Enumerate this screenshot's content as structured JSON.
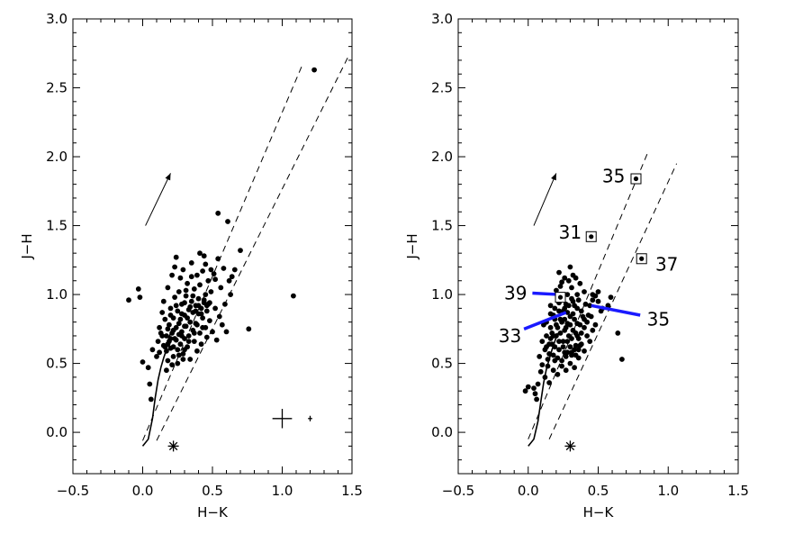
{
  "chart_data": [
    {
      "type": "scatter",
      "panel": "left",
      "xlabel": "H−K",
      "ylabel": "J−H",
      "xlim": [
        -0.5,
        1.5
      ],
      "ylim": [
        -0.3,
        3.0
      ],
      "x_ticks": [
        "−0.5",
        "0.0",
        "0.5",
        "1.0",
        "1.5"
      ],
      "y_ticks": [
        "0.0",
        "0.5",
        "1.0",
        "1.5",
        "2.0",
        "2.5",
        "3.0"
      ],
      "grid": false,
      "legend": "none",
      "points": [
        [
          1.23,
          2.63
        ],
        [
          0.54,
          1.59
        ],
        [
          0.61,
          1.53
        ],
        [
          1.08,
          0.99
        ],
        [
          0.76,
          0.75
        ],
        [
          0.7,
          1.32
        ],
        [
          0.66,
          1.18
        ],
        [
          0.64,
          1.13
        ],
        [
          -0.1,
          0.96
        ],
        [
          -0.03,
          1.04
        ],
        [
          -0.02,
          0.98
        ],
        [
          0.0,
          0.51
        ],
        [
          0.04,
          0.47
        ],
        [
          0.06,
          0.24
        ],
        [
          0.07,
          0.6
        ],
        [
          0.05,
          0.35
        ],
        [
          0.1,
          0.55
        ],
        [
          0.11,
          0.66
        ],
        [
          0.12,
          0.76
        ],
        [
          0.13,
          0.72
        ],
        [
          0.14,
          0.87
        ],
        [
          0.15,
          0.63
        ],
        [
          0.15,
          0.95
        ],
        [
          0.16,
          0.82
        ],
        [
          0.17,
          0.7
        ],
        [
          0.17,
          0.59
        ],
        [
          0.18,
          1.05
        ],
        [
          0.18,
          0.52
        ],
        [
          0.19,
          0.78
        ],
        [
          0.19,
          0.66
        ],
        [
          0.2,
          0.9
        ],
        [
          0.2,
          0.61
        ],
        [
          0.21,
          0.72
        ],
        [
          0.21,
          1.14
        ],
        [
          0.22,
          0.83
        ],
        [
          0.22,
          0.55
        ],
        [
          0.23,
          0.98
        ],
        [
          0.23,
          0.68
        ],
        [
          0.24,
          0.76
        ],
        [
          0.24,
          1.27
        ],
        [
          0.25,
          0.88
        ],
        [
          0.25,
          0.6
        ],
        [
          0.26,
          0.71
        ],
        [
          0.26,
          1.02
        ],
        [
          0.27,
          0.82
        ],
        [
          0.27,
          0.64
        ],
        [
          0.28,
          0.93
        ],
        [
          0.28,
          0.73
        ],
        [
          0.29,
          1.18
        ],
        [
          0.29,
          0.57
        ],
        [
          0.3,
          0.85
        ],
        [
          0.3,
          0.68
        ],
        [
          0.31,
          0.99
        ],
        [
          0.31,
          0.77
        ],
        [
          0.32,
          0.62
        ],
        [
          0.32,
          1.08
        ],
        [
          0.33,
          0.89
        ],
        [
          0.33,
          0.7
        ],
        [
          0.34,
          0.8
        ],
        [
          0.34,
          0.53
        ],
        [
          0.35,
          0.95
        ],
        [
          0.35,
          1.23
        ],
        [
          0.36,
          0.74
        ],
        [
          0.36,
          0.87
        ],
        [
          0.37,
          1.04
        ],
        [
          0.37,
          0.66
        ],
        [
          0.38,
          0.92
        ],
        [
          0.38,
          0.79
        ],
        [
          0.39,
          1.14
        ],
        [
          0.39,
          0.59
        ],
        [
          0.4,
          0.86
        ],
        [
          0.4,
          0.97
        ],
        [
          0.41,
          0.72
        ],
        [
          0.41,
          1.07
        ],
        [
          0.42,
          0.9
        ],
        [
          0.42,
          0.64
        ],
        [
          0.43,
          1.17
        ],
        [
          0.43,
          0.83
        ],
        [
          0.44,
          0.94
        ],
        [
          0.44,
          1.28
        ],
        [
          0.45,
          0.76
        ],
        [
          0.45,
          1.0
        ],
        [
          0.46,
          0.88
        ],
        [
          0.46,
          0.69
        ],
        [
          0.47,
          1.1
        ],
        [
          0.47,
          0.93
        ],
        [
          0.48,
          0.81
        ],
        [
          0.49,
          1.02
        ],
        [
          0.5,
          0.73
        ],
        [
          0.51,
          1.15
        ],
        [
          0.52,
          0.9
        ],
        [
          0.53,
          0.67
        ],
        [
          0.54,
          1.26
        ],
        [
          0.55,
          0.84
        ],
        [
          0.56,
          1.05
        ],
        [
          0.57,
          0.78
        ],
        [
          0.58,
          1.19
        ],
        [
          0.59,
          0.93
        ],
        [
          0.6,
          0.73
        ],
        [
          0.62,
          1.1
        ],
        [
          0.63,
          1.0
        ],
        [
          0.12,
          0.58
        ],
        [
          0.14,
          0.7
        ],
        [
          0.16,
          0.62
        ],
        [
          0.18,
          0.75
        ],
        [
          0.2,
          0.68
        ],
        [
          0.22,
          0.74
        ],
        [
          0.24,
          0.67
        ],
        [
          0.26,
          0.79
        ],
        [
          0.28,
          0.7
        ],
        [
          0.3,
          0.77
        ],
        [
          0.32,
          0.83
        ],
        [
          0.2,
          0.85
        ],
        [
          0.24,
          0.92
        ],
        [
          0.28,
          0.86
        ],
        [
          0.3,
          0.94
        ],
        [
          0.34,
          0.91
        ],
        [
          0.36,
          0.99
        ],
        [
          0.4,
          0.92
        ],
        [
          0.44,
          0.96
        ],
        [
          0.38,
          0.88
        ],
        [
          0.42,
          0.86
        ],
        [
          0.26,
          0.56
        ],
        [
          0.3,
          0.6
        ],
        [
          0.22,
          0.62
        ],
        [
          0.18,
          0.64
        ],
        [
          0.46,
          0.92
        ],
        [
          0.48,
          0.94
        ],
        [
          0.17,
          0.45
        ],
        [
          0.21,
          0.49
        ],
        [
          0.25,
          0.5
        ],
        [
          0.29,
          0.53
        ],
        [
          0.23,
          1.2
        ],
        [
          0.27,
          1.12
        ],
        [
          0.31,
          1.03
        ],
        [
          0.35,
          1.13
        ],
        [
          0.41,
          1.3
        ],
        [
          0.45,
          1.22
        ],
        [
          0.49,
          1.18
        ],
        [
          0.52,
          1.11
        ],
        [
          0.33,
          0.66
        ],
        [
          0.37,
          0.72
        ],
        [
          0.39,
          0.78
        ],
        [
          0.43,
          0.76
        ]
      ],
      "annotations": [
        {
          "type": "dashed-line",
          "x": [
            0.0,
            1.15
          ],
          "y": [
            -0.06,
            2.68
          ]
        },
        {
          "type": "dashed-line",
          "x": [
            0.1,
            1.47
          ],
          "y": [
            -0.06,
            2.72
          ]
        },
        {
          "type": "reddening-arrow",
          "x": [
            0.02,
            0.2
          ],
          "y": [
            1.5,
            1.88
          ]
        },
        {
          "type": "asterisk",
          "x": 0.22,
          "y": -0.1
        },
        {
          "type": "error-cross",
          "x": 1.0,
          "y": 0.1,
          "dx": 0.07,
          "dy": 0.07
        },
        {
          "type": "error-cross",
          "x": 1.2,
          "y": 0.1,
          "dx": 0.015,
          "dy": 0.02
        }
      ],
      "track": {
        "x": [
          0.0,
          0.04,
          0.07,
          0.09,
          0.11,
          0.13,
          0.15,
          0.17,
          0.18,
          0.2
        ],
        "y": [
          -0.1,
          -0.05,
          0.1,
          0.25,
          0.38,
          0.47,
          0.54,
          0.6,
          0.66,
          0.72
        ]
      }
    },
    {
      "type": "scatter",
      "panel": "right",
      "xlabel": "H−K",
      "ylabel": "J−H",
      "xlim": [
        -0.5,
        1.5
      ],
      "ylim": [
        -0.3,
        3.0
      ],
      "x_ticks": [
        "−0.5",
        "0.0",
        "0.5",
        "1.0",
        "1.5"
      ],
      "y_ticks": [
        "0.0",
        "0.5",
        "1.0",
        "1.5",
        "2.0",
        "2.5",
        "3.0"
      ],
      "grid": false,
      "legend": "none",
      "points": [
        [
          0.64,
          0.72
        ],
        [
          0.67,
          0.53
        ],
        [
          0.59,
          0.98
        ],
        [
          0.57,
          0.92
        ],
        [
          0.52,
          0.88
        ],
        [
          0.5,
          1.02
        ],
        [
          0.48,
          0.99
        ],
        [
          0.46,
          0.96
        ],
        [
          0.44,
          0.92
        ],
        [
          0.43,
          0.85
        ],
        [
          0.42,
          0.8
        ],
        [
          0.4,
          0.76
        ],
        [
          0.38,
          0.72
        ],
        [
          0.36,
          0.68
        ],
        [
          0.35,
          0.9
        ],
        [
          0.34,
          0.63
        ],
        [
          0.33,
          0.82
        ],
        [
          0.32,
          0.95
        ],
        [
          0.31,
          0.58
        ],
        [
          0.3,
          0.78
        ],
        [
          0.29,
          0.7
        ],
        [
          0.28,
          0.87
        ],
        [
          0.27,
          0.55
        ],
        [
          0.26,
          0.74
        ],
        [
          0.25,
          0.66
        ],
        [
          0.24,
          1.09
        ],
        [
          0.23,
          0.82
        ],
        [
          0.22,
          0.6
        ],
        [
          0.21,
          0.98
        ],
        [
          0.2,
          0.7
        ],
        [
          0.19,
          0.52
        ],
        [
          0.18,
          0.85
        ],
        [
          0.17,
          0.64
        ],
        [
          0.16,
          0.76
        ],
        [
          0.15,
          0.57
        ],
        [
          0.14,
          0.48
        ],
        [
          0.13,
          0.7
        ],
        [
          0.12,
          0.6
        ],
        [
          0.11,
          0.78
        ],
        [
          0.1,
          0.66
        ],
        [
          0.09,
          0.44
        ],
        [
          0.08,
          0.55
        ],
        [
          0.07,
          0.35
        ],
        [
          0.06,
          0.24
        ],
        [
          0.05,
          0.28
        ],
        [
          0.04,
          0.32
        ],
        [
          0.0,
          0.33
        ],
        [
          -0.02,
          0.3
        ],
        [
          0.12,
          0.4
        ],
        [
          0.15,
          0.36
        ],
        [
          0.18,
          0.45
        ],
        [
          0.21,
          0.42
        ],
        [
          0.24,
          0.48
        ],
        [
          0.27,
          0.45
        ],
        [
          0.3,
          0.5
        ],
        [
          0.33,
          0.47
        ],
        [
          0.36,
          0.54
        ],
        [
          0.2,
          0.78
        ],
        [
          0.23,
          0.72
        ],
        [
          0.26,
          0.82
        ],
        [
          0.29,
          0.92
        ],
        [
          0.32,
          0.86
        ],
        [
          0.35,
          0.79
        ],
        [
          0.38,
          0.88
        ],
        [
          0.41,
          0.93
        ],
        [
          0.19,
          0.9
        ],
        [
          0.22,
          0.94
        ],
        [
          0.25,
          0.88
        ],
        [
          0.28,
          1.0
        ],
        [
          0.31,
          1.05
        ],
        [
          0.34,
          1.12
        ],
        [
          0.37,
          1.08
        ],
        [
          0.4,
          1.02
        ],
        [
          0.22,
          1.16
        ],
        [
          0.26,
          1.12
        ],
        [
          0.3,
          1.2
        ],
        [
          0.33,
          0.6
        ],
        [
          0.37,
          0.63
        ],
        [
          0.4,
          0.59
        ],
        [
          0.44,
          0.66
        ],
        [
          0.16,
          0.68
        ],
        [
          0.19,
          0.62
        ],
        [
          0.22,
          0.66
        ],
        [
          0.25,
          0.62
        ],
        [
          0.28,
          0.66
        ],
        [
          0.31,
          0.68
        ],
        [
          0.34,
          0.72
        ],
        [
          0.13,
          0.62
        ],
        [
          0.17,
          0.72
        ],
        [
          0.21,
          0.76
        ],
        [
          0.24,
          0.8
        ],
        [
          0.27,
          0.76
        ],
        [
          0.3,
          0.84
        ],
        [
          0.33,
          0.92
        ],
        [
          0.36,
          0.96
        ],
        [
          0.39,
          0.84
        ],
        [
          0.26,
          0.58
        ],
        [
          0.3,
          0.62
        ],
        [
          0.18,
          0.56
        ],
        [
          0.14,
          0.53
        ],
        [
          0.1,
          0.49
        ],
        [
          0.38,
          0.64
        ],
        [
          0.42,
          0.7
        ],
        [
          0.46,
          0.74
        ],
        [
          0.27,
          0.93
        ],
        [
          0.31,
          0.97
        ],
        [
          0.35,
          1.0
        ],
        [
          0.24,
          0.98
        ],
        [
          0.2,
          1.03
        ],
        [
          0.23,
          1.06
        ],
        [
          0.29,
          1.1
        ],
        [
          0.32,
          1.14
        ],
        [
          0.46,
          1.0
        ],
        [
          0.5,
          0.95
        ],
        [
          0.53,
          0.9
        ],
        [
          0.45,
          0.84
        ],
        [
          0.48,
          0.78
        ],
        [
          0.16,
          0.86
        ],
        [
          0.19,
          0.82
        ],
        [
          0.22,
          0.88
        ],
        [
          0.26,
          0.9
        ],
        [
          0.28,
          0.79
        ],
        [
          0.32,
          0.74
        ],
        [
          0.35,
          0.7
        ],
        [
          0.37,
          0.78
        ],
        [
          0.4,
          0.82
        ],
        [
          0.13,
          0.8
        ],
        [
          0.16,
          0.92
        ],
        [
          0.21,
          0.54
        ],
        [
          0.24,
          0.52
        ],
        [
          0.28,
          0.58
        ],
        [
          0.31,
          0.56
        ],
        [
          0.34,
          0.56
        ],
        [
          0.36,
          0.6
        ],
        [
          0.15,
          0.64
        ],
        [
          0.18,
          0.7
        ]
      ],
      "boxed_sources": [
        {
          "label": "35",
          "x": 0.77,
          "y": 1.84
        },
        {
          "label": "31",
          "x": 0.45,
          "y": 1.42
        },
        {
          "label": "37",
          "x": 0.81,
          "y": 1.26
        },
        {
          "label": "39",
          "x": 0.23,
          "y": 0.98
        }
      ],
      "text_labels": [
        {
          "text": "35",
          "x": 0.61,
          "y": 1.86
        },
        {
          "text": "31",
          "x": 0.3,
          "y": 1.45
        },
        {
          "text": "37",
          "x": 0.99,
          "y": 1.22
        },
        {
          "text": "39",
          "x": -0.09,
          "y": 1.01
        },
        {
          "text": "33",
          "x": -0.13,
          "y": 0.7
        },
        {
          "text": "35",
          "x": 0.93,
          "y": 0.82
        }
      ],
      "blue_segments": [
        {
          "x": [
            0.03,
            0.22
          ],
          "y": [
            1.01,
            1.0
          ]
        },
        {
          "x": [
            -0.03,
            0.27
          ],
          "y": [
            0.75,
            0.87
          ]
        },
        {
          "x": [
            0.45,
            0.8
          ],
          "y": [
            0.92,
            0.85
          ]
        }
      ],
      "annotations": [
        {
          "type": "dashed-line",
          "x": [
            0.0,
            0.85
          ],
          "y": [
            -0.05,
            2.02
          ]
        },
        {
          "type": "dashed-line",
          "x": [
            0.15,
            1.06
          ],
          "y": [
            -0.05,
            1.95
          ]
        },
        {
          "type": "reddening-arrow",
          "x": [
            0.04,
            0.2
          ],
          "y": [
            1.5,
            1.88
          ]
        },
        {
          "type": "asterisk",
          "x": 0.3,
          "y": -0.1
        }
      ],
      "track": {
        "x": [
          0.0,
          0.04,
          0.07,
          0.09,
          0.11,
          0.13,
          0.15,
          0.17,
          0.19,
          0.21
        ],
        "y": [
          -0.1,
          -0.05,
          0.08,
          0.22,
          0.36,
          0.46,
          0.53,
          0.6,
          0.66,
          0.72
        ]
      }
    }
  ]
}
